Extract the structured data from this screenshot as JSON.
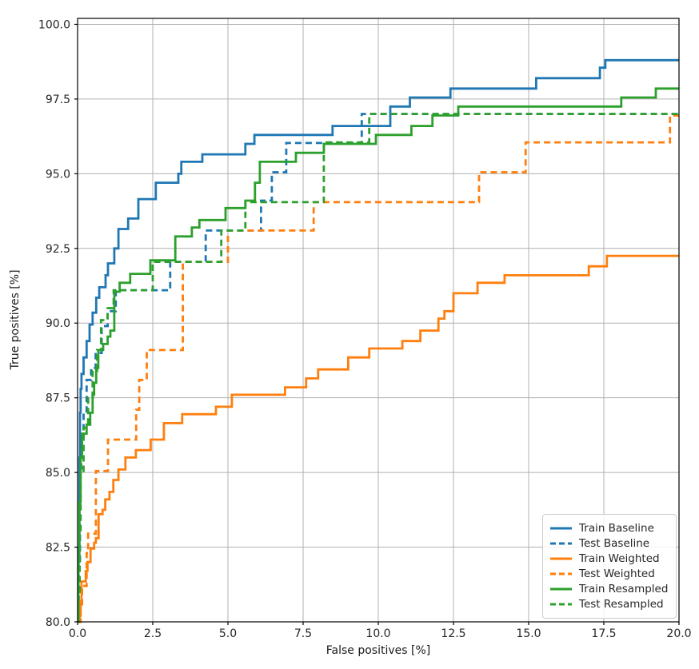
{
  "chart_data": {
    "type": "line",
    "subtype": "roc-step-curves",
    "title": "",
    "xlabel": "False positives [%]",
    "ylabel": "True positives [%]",
    "xlim": [
      0,
      20
    ],
    "ylim": [
      80,
      100.2
    ],
    "grid": true,
    "grid_color": "#b0b0b0",
    "axis_color": "#000000",
    "tick_label_color": "#262626",
    "legend_position": "lower right",
    "x_ticks": [
      0.0,
      2.5,
      5.0,
      7.5,
      10.0,
      12.5,
      15.0,
      17.5,
      20.0
    ],
    "x_tick_labels": [
      "0.0",
      "2.5",
      "5.0",
      "7.5",
      "10.0",
      "12.5",
      "15.0",
      "17.5",
      "20.0"
    ],
    "y_ticks": [
      80.0,
      82.5,
      85.0,
      87.5,
      90.0,
      92.5,
      95.0,
      97.5,
      100.0
    ],
    "y_tick_labels": [
      "80.0",
      "82.5",
      "85.0",
      "87.5",
      "90.0",
      "92.5",
      "95.0",
      "97.5",
      "100.0"
    ],
    "series": [
      {
        "name": "Train Baseline",
        "color": "#1f77b4",
        "line_style": "solid",
        "points": [
          [
            0,
            80
          ],
          [
            0.03,
            82.5
          ],
          [
            0.06,
            85.5
          ],
          [
            0.08,
            87.0
          ],
          [
            0.1,
            87.8
          ],
          [
            0.13,
            88.3
          ],
          [
            0.2,
            88.85
          ],
          [
            0.3,
            89.4
          ],
          [
            0.4,
            89.95
          ],
          [
            0.5,
            90.35
          ],
          [
            0.62,
            90.85
          ],
          [
            0.72,
            91.2
          ],
          [
            0.93,
            91.6
          ],
          [
            1.01,
            92.0
          ],
          [
            1.22,
            92.5
          ],
          [
            1.36,
            93.15
          ],
          [
            1.68,
            93.5
          ],
          [
            2.02,
            94.15
          ],
          [
            2.6,
            94.7
          ],
          [
            3.35,
            95.0
          ],
          [
            3.45,
            95.4
          ],
          [
            4.15,
            95.65
          ],
          [
            5.58,
            96.0
          ],
          [
            5.88,
            96.3
          ],
          [
            8.48,
            96.6
          ],
          [
            10.4,
            97.25
          ],
          [
            11.05,
            97.55
          ],
          [
            12.4,
            97.85
          ],
          [
            15.25,
            98.2
          ],
          [
            17.37,
            98.55
          ],
          [
            17.55,
            98.8
          ],
          [
            20,
            98.8
          ]
        ]
      },
      {
        "name": "Test Baseline",
        "color": "#1f77b4",
        "line_style": "dashed",
        "points": [
          [
            0,
            80
          ],
          [
            0.04,
            82.0
          ],
          [
            0.08,
            85.0
          ],
          [
            0.12,
            86.2
          ],
          [
            0.2,
            87.0
          ],
          [
            0.3,
            88.1
          ],
          [
            0.45,
            88.5
          ],
          [
            0.6,
            89.0
          ],
          [
            0.8,
            89.9
          ],
          [
            1.0,
            90.4
          ],
          [
            1.27,
            91.1
          ],
          [
            3.08,
            92.05
          ],
          [
            4.26,
            93.1
          ],
          [
            6.1,
            94.1
          ],
          [
            6.46,
            95.05
          ],
          [
            6.94,
            96.03
          ],
          [
            9.45,
            97.0
          ],
          [
            20,
            97.0
          ]
        ]
      },
      {
        "name": "Train Weighted",
        "color": "#ff7f0e",
        "line_style": "solid",
        "points": [
          [
            0,
            80
          ],
          [
            0.07,
            80.2
          ],
          [
            0.1,
            80.7
          ],
          [
            0.13,
            81.35
          ],
          [
            0.27,
            81.7
          ],
          [
            0.33,
            82.0
          ],
          [
            0.43,
            82.45
          ],
          [
            0.55,
            82.65
          ],
          [
            0.61,
            82.8
          ],
          [
            0.7,
            83.6
          ],
          [
            0.83,
            83.75
          ],
          [
            0.92,
            84.1
          ],
          [
            1.06,
            84.35
          ],
          [
            1.19,
            84.75
          ],
          [
            1.36,
            85.1
          ],
          [
            1.59,
            85.5
          ],
          [
            1.94,
            85.75
          ],
          [
            2.43,
            86.1
          ],
          [
            2.87,
            86.65
          ],
          [
            3.48,
            86.95
          ],
          [
            4.6,
            87.2
          ],
          [
            5.13,
            87.6
          ],
          [
            6.9,
            87.85
          ],
          [
            7.6,
            88.15
          ],
          [
            8.0,
            88.45
          ],
          [
            9.0,
            88.85
          ],
          [
            9.7,
            89.15
          ],
          [
            10.8,
            89.4
          ],
          [
            11.4,
            89.75
          ],
          [
            12.0,
            90.15
          ],
          [
            12.2,
            90.4
          ],
          [
            12.5,
            91.0
          ],
          [
            13.3,
            91.35
          ],
          [
            14.2,
            91.6
          ],
          [
            17.0,
            91.9
          ],
          [
            17.6,
            92.25
          ],
          [
            20,
            92.25
          ]
        ]
      },
      {
        "name": "Test Weighted",
        "color": "#ff7f0e",
        "line_style": "dashed",
        "points": [
          [
            0,
            80
          ],
          [
            0.1,
            80.5
          ],
          [
            0.15,
            81.2
          ],
          [
            0.3,
            82.3
          ],
          [
            0.35,
            82.95
          ],
          [
            0.61,
            85.05
          ],
          [
            1.01,
            86.1
          ],
          [
            1.95,
            87.1
          ],
          [
            2.05,
            88.1
          ],
          [
            2.3,
            89.1
          ],
          [
            3.5,
            92.05
          ],
          [
            5.0,
            93.1
          ],
          [
            7.85,
            94.05
          ],
          [
            13.35,
            95.05
          ],
          [
            14.9,
            96.05
          ],
          [
            19.7,
            96.95
          ],
          [
            20,
            96.95
          ]
        ]
      },
      {
        "name": "Train Resampled",
        "color": "#2ca02c",
        "line_style": "solid",
        "points": [
          [
            0,
            80
          ],
          [
            0.03,
            82
          ],
          [
            0.06,
            84
          ],
          [
            0.1,
            85.5
          ],
          [
            0.15,
            86.3
          ],
          [
            0.3,
            86.6
          ],
          [
            0.42,
            87.0
          ],
          [
            0.5,
            87.6
          ],
          [
            0.55,
            88.0
          ],
          [
            0.62,
            88.5
          ],
          [
            0.69,
            89.1
          ],
          [
            0.85,
            89.3
          ],
          [
            1.0,
            89.55
          ],
          [
            1.09,
            89.75
          ],
          [
            1.22,
            91.05
          ],
          [
            1.4,
            91.35
          ],
          [
            1.75,
            91.65
          ],
          [
            2.42,
            92.1
          ],
          [
            3.25,
            92.9
          ],
          [
            3.8,
            93.2
          ],
          [
            4.05,
            93.45
          ],
          [
            4.92,
            93.85
          ],
          [
            5.58,
            94.1
          ],
          [
            5.9,
            94.7
          ],
          [
            6.06,
            95.4
          ],
          [
            7.26,
            95.7
          ],
          [
            8.19,
            96.0
          ],
          [
            9.92,
            96.3
          ],
          [
            11.1,
            96.6
          ],
          [
            11.8,
            96.95
          ],
          [
            12.66,
            97.25
          ],
          [
            18.08,
            97.55
          ],
          [
            19.23,
            97.85
          ],
          [
            20,
            97.85
          ]
        ]
      },
      {
        "name": "Test Resampled",
        "color": "#2ca02c",
        "line_style": "dashed",
        "points": [
          [
            0,
            80
          ],
          [
            0.03,
            81
          ],
          [
            0.07,
            83
          ],
          [
            0.1,
            85.0
          ],
          [
            0.2,
            86.5
          ],
          [
            0.35,
            87.5
          ],
          [
            0.5,
            88.4
          ],
          [
            0.65,
            89.1
          ],
          [
            0.78,
            90.1
          ],
          [
            1.0,
            90.5
          ],
          [
            1.2,
            91.1
          ],
          [
            2.5,
            92.05
          ],
          [
            4.78,
            93.1
          ],
          [
            5.58,
            94.05
          ],
          [
            8.19,
            96.05
          ],
          [
            9.7,
            97.0
          ],
          [
            20,
            97.0
          ]
        ]
      }
    ]
  }
}
